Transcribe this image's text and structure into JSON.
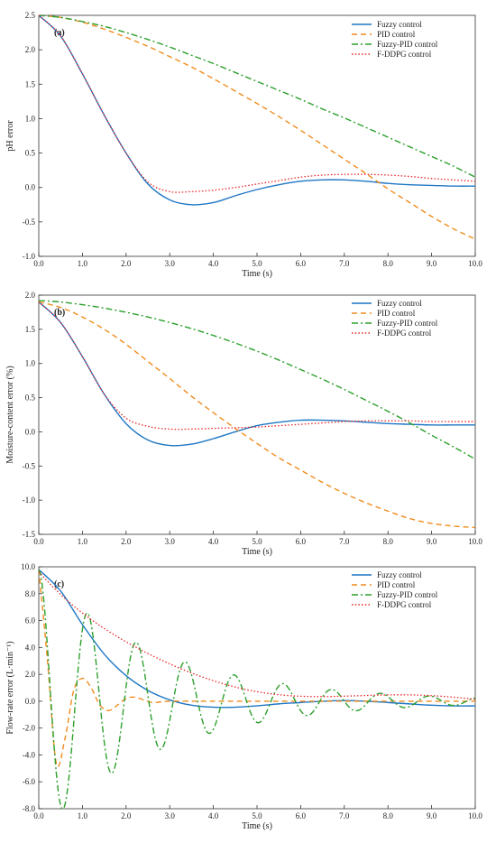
{
  "colors": {
    "fuzzy": "#1f77c4",
    "pid": "#f08c1e",
    "fuzzy_pid": "#2ca02c",
    "fddpg": "#e8262a",
    "pid_fuzzy_overlap": "#6a4c93"
  },
  "chart_data": [
    {
      "type": "line",
      "panel_tag": "(a)",
      "xlabel": "Time (s)",
      "ylabel": "pH error",
      "xlim": [
        0,
        10
      ],
      "ylim": [
        -1.0,
        2.5
      ],
      "x_ticks": [
        0,
        1,
        2,
        3,
        4,
        5,
        6,
        7,
        8,
        9,
        10
      ],
      "x_tick_labels": [
        "0.0",
        "1.0",
        "2.0",
        "3.0",
        "4.0",
        "5.0",
        "6.0",
        "7.0",
        "8.0",
        "9.0",
        "10.0"
      ],
      "y_ticks": [
        -1.0,
        -0.5,
        0.0,
        0.5,
        1.0,
        1.5,
        2.0,
        2.5
      ],
      "y_tick_labels": [
        "-1.0",
        "-0.5",
        "0.0",
        "0.5",
        "1.0",
        "1.5",
        "2.0",
        "2.5"
      ],
      "legend_position": "top-right",
      "series": [
        {
          "name": "Fuzzy control",
          "style": "solid",
          "color_key": "fuzzy",
          "x": [
            0,
            0.5,
            1,
            1.5,
            2,
            2.5,
            3,
            3.5,
            4,
            4.5,
            5,
            5.5,
            6,
            6.5,
            7,
            7.5,
            8,
            8.5,
            9,
            9.5,
            10
          ],
          "y": [
            2.5,
            2.2,
            1.65,
            1.05,
            0.5,
            0.05,
            -0.18,
            -0.25,
            -0.22,
            -0.12,
            -0.03,
            0.04,
            0.09,
            0.11,
            0.11,
            0.09,
            0.06,
            0.04,
            0.03,
            0.02,
            0.02
          ]
        },
        {
          "name": "PID control",
          "style": "dashed",
          "color_key": "pid",
          "x": [
            0,
            0.5,
            1,
            1.5,
            2,
            2.5,
            3,
            3.5,
            4,
            4.5,
            5,
            5.5,
            6,
            6.5,
            7,
            7.5,
            8,
            8.5,
            9,
            9.5,
            10
          ],
          "y": [
            2.5,
            2.47,
            2.4,
            2.3,
            2.18,
            2.05,
            1.9,
            1.75,
            1.58,
            1.4,
            1.22,
            1.03,
            0.83,
            0.62,
            0.41,
            0.2,
            -0.02,
            -0.22,
            -0.42,
            -0.6,
            -0.75
          ]
        },
        {
          "name": "Fuzzy-PID control",
          "style": "dashdot",
          "color_key": "fuzzy_pid",
          "x": [
            0,
            0.5,
            1,
            1.5,
            2,
            2.5,
            3,
            3.5,
            4,
            4.5,
            5,
            5.5,
            6,
            6.5,
            7,
            7.5,
            8,
            8.5,
            9,
            9.5,
            10
          ],
          "y": [
            2.5,
            2.47,
            2.41,
            2.34,
            2.25,
            2.15,
            2.04,
            1.92,
            1.8,
            1.67,
            1.54,
            1.41,
            1.28,
            1.14,
            1.01,
            0.87,
            0.73,
            0.59,
            0.45,
            0.31,
            0.15
          ]
        },
        {
          "name": "F-DDPG control",
          "style": "dotted",
          "color_key": "fddpg",
          "x": [
            0,
            0.5,
            1,
            1.5,
            2,
            2.5,
            3,
            3.5,
            4,
            4.5,
            5,
            5.5,
            6,
            6.5,
            7,
            7.5,
            8,
            8.5,
            9,
            9.5,
            10
          ],
          "y": [
            2.5,
            2.2,
            1.65,
            1.05,
            0.5,
            0.08,
            -0.06,
            -0.06,
            -0.04,
            0.0,
            0.05,
            0.1,
            0.15,
            0.18,
            0.19,
            0.19,
            0.18,
            0.16,
            0.13,
            0.11,
            0.09
          ]
        }
      ]
    },
    {
      "type": "line",
      "panel_tag": "(b)",
      "xlabel": "Time (s)",
      "ylabel": "Moisture-content error (%)",
      "xlim": [
        0,
        10
      ],
      "ylim": [
        -1.5,
        2.0
      ],
      "x_ticks": [
        0,
        1,
        2,
        3,
        4,
        5,
        6,
        7,
        8,
        9,
        10
      ],
      "x_tick_labels": [
        "0.0",
        "1.0",
        "2.0",
        "3.0",
        "4.0",
        "5.0",
        "6.0",
        "7.0",
        "8.0",
        "9.0",
        "10.0"
      ],
      "y_ticks": [
        -1.5,
        -1.0,
        -0.5,
        0.0,
        0.5,
        1.0,
        1.5,
        2.0
      ],
      "y_tick_labels": [
        "-1.5",
        "-1.0",
        "-0.5",
        "0.0",
        "0.5",
        "1.0",
        "1.5",
        "2.0"
      ],
      "legend_position": "top-right",
      "series": [
        {
          "name": "Fuzzy control",
          "style": "solid",
          "color_key": "fuzzy",
          "x": [
            0,
            0.5,
            1,
            1.5,
            2,
            2.5,
            3,
            3.5,
            4,
            4.5,
            5,
            5.5,
            6,
            6.5,
            7,
            7.5,
            8,
            8.5,
            9,
            9.5,
            10
          ],
          "y": [
            1.9,
            1.6,
            1.1,
            0.55,
            0.12,
            -0.12,
            -0.2,
            -0.18,
            -0.1,
            0.0,
            0.09,
            0.14,
            0.17,
            0.17,
            0.16,
            0.14,
            0.12,
            0.11,
            0.1,
            0.1,
            0.1
          ]
        },
        {
          "name": "PID control",
          "style": "dashed",
          "color_key": "pid",
          "x": [
            0,
            0.5,
            1,
            1.5,
            2,
            2.5,
            3,
            3.5,
            4,
            4.5,
            5,
            5.5,
            6,
            6.5,
            7,
            7.5,
            8,
            8.5,
            9,
            9.5,
            10
          ],
          "y": [
            1.9,
            1.82,
            1.68,
            1.5,
            1.28,
            1.03,
            0.78,
            0.52,
            0.28,
            0.05,
            -0.17,
            -0.38,
            -0.56,
            -0.74,
            -0.9,
            -1.04,
            -1.16,
            -1.27,
            -1.34,
            -1.38,
            -1.4
          ]
        },
        {
          "name": "Fuzzy-PID control",
          "style": "dashdot",
          "color_key": "fuzzy_pid",
          "x": [
            0,
            0.5,
            1,
            1.5,
            2,
            2.5,
            3,
            3.5,
            4,
            4.5,
            5,
            5.5,
            6,
            6.5,
            7,
            7.5,
            8,
            8.5,
            9,
            9.5,
            10
          ],
          "y": [
            1.92,
            1.9,
            1.86,
            1.81,
            1.75,
            1.68,
            1.6,
            1.51,
            1.41,
            1.3,
            1.18,
            1.05,
            0.91,
            0.77,
            0.62,
            0.46,
            0.3,
            0.13,
            -0.05,
            -0.22,
            -0.4
          ]
        },
        {
          "name": "F-DDPG control",
          "style": "dotted",
          "color_key": "fddpg",
          "x": [
            0,
            0.5,
            1,
            1.5,
            2,
            2.5,
            3,
            3.5,
            4,
            4.5,
            5,
            5.5,
            6,
            6.5,
            7,
            7.5,
            8,
            8.5,
            9,
            9.5,
            10
          ],
          "y": [
            1.9,
            1.6,
            1.1,
            0.55,
            0.2,
            0.08,
            0.04,
            0.04,
            0.05,
            0.06,
            0.07,
            0.09,
            0.11,
            0.13,
            0.15,
            0.16,
            0.16,
            0.16,
            0.15,
            0.15,
            0.15
          ]
        }
      ]
    },
    {
      "type": "line",
      "panel_tag": "(c)",
      "xlabel": "Time (s)",
      "ylabel": "Flow-rate error (L·min⁻¹)",
      "xlim": [
        0,
        10
      ],
      "ylim": [
        -8.0,
        10.0
      ],
      "x_ticks": [
        0,
        1,
        2,
        3,
        4,
        5,
        6,
        7,
        8,
        9,
        10
      ],
      "x_tick_labels": [
        "0.0",
        "1.0",
        "2.0",
        "3.0",
        "4.0",
        "5.0",
        "6.0",
        "7.0",
        "8.0",
        "9.0",
        "10.0"
      ],
      "y_ticks": [
        -8.0,
        -6.0,
        -4.0,
        -2.0,
        0.0,
        2.0,
        4.0,
        6.0,
        8.0,
        10.0
      ],
      "y_tick_labels": [
        "-8.0",
        "-6.0",
        "-4.0",
        "-2.0",
        "0.0",
        "2.0",
        "4.0",
        "6.0",
        "8.0",
        "10.0"
      ],
      "legend_position": "top-right",
      "series": [
        {
          "name": "Fuzzy control",
          "style": "solid",
          "color_key": "fuzzy",
          "x": [
            0,
            0.5,
            1,
            1.5,
            2,
            2.5,
            3,
            3.5,
            4,
            4.5,
            5,
            5.5,
            6,
            6.5,
            7,
            7.5,
            8,
            8.5,
            9,
            9.5,
            10
          ],
          "y": [
            9.8,
            8.2,
            5.7,
            3.5,
            1.9,
            0.8,
            0.1,
            -0.3,
            -0.45,
            -0.45,
            -0.35,
            -0.2,
            -0.1,
            0.0,
            0.05,
            0.0,
            -0.1,
            -0.2,
            -0.3,
            -0.35,
            -0.35
          ]
        },
        {
          "name": "PID control",
          "style": "dashed",
          "color_key": "pid",
          "x": [
            0,
            0.2,
            0.4,
            0.6,
            0.8,
            1,
            1.2,
            1.4,
            1.6,
            1.8,
            2,
            2.2,
            2.4,
            2.6,
            2.8,
            3,
            3.5,
            4,
            5,
            6,
            7,
            8,
            9,
            10
          ],
          "y": [
            9.8,
            3.0,
            -4.6,
            -2.8,
            0.8,
            1.7,
            1.0,
            -0.3,
            -0.7,
            -0.3,
            0.2,
            0.3,
            0.1,
            -0.1,
            -0.05,
            0.0,
            0.0,
            0.0,
            0.0,
            0.0,
            0.0,
            0.0,
            0.0,
            0.0
          ]
        }
      ]
    }
  ]
}
